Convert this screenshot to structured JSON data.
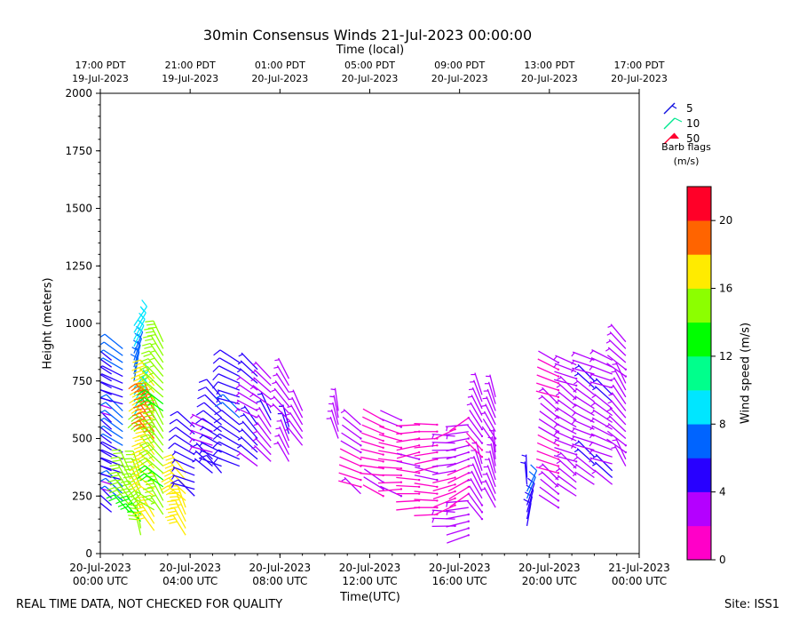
{
  "title": "30min Consensus Winds 21-Jul-2023 00:00:00",
  "top_axis_label": "Time (local)",
  "x_axis_label": "Time(UTC)",
  "y_axis_label": "Height (meters)",
  "footer_left": "REAL TIME DATA, NOT CHECKED FOR QUALITY",
  "footer_right": "Site: ISS1",
  "barb_legend": {
    "title_line1": "Barb flags",
    "title_line2": "(m/s)",
    "entries": [
      {
        "label": "5",
        "color": "#1010e0"
      },
      {
        "label": "10",
        "color": "#00e890"
      },
      {
        "label": "50",
        "color": "#ff0030"
      }
    ]
  },
  "colorbar": {
    "label": "Wind speed (m/s)",
    "colors": [
      "#ff00c8",
      "#b400ff",
      "#2800ff",
      "#0064ff",
      "#00e6ff",
      "#00ff8c",
      "#00ff00",
      "#8cff00",
      "#ffeb00",
      "#ff6400",
      "#ff0028"
    ],
    "ticks": [
      0,
      4,
      8,
      12,
      16,
      20
    ],
    "range": [
      0,
      22
    ]
  },
  "chart_data": {
    "type": "wind_barb_time_height",
    "title": "30min Consensus Winds 21-Jul-2023 00:00:00",
    "xlabel": "Time(UTC)",
    "ylabel": "Height (meters)",
    "x_hours_range": [
      0,
      24
    ],
    "ylim": [
      0,
      2000
    ],
    "y_ticks": [
      0,
      250,
      500,
      750,
      1000,
      1250,
      1500,
      1750,
      2000
    ],
    "x_ticks_utc": [
      {
        "h": 0,
        "line1": "20-Jul-2023",
        "line2": "00:00 UTC"
      },
      {
        "h": 4,
        "line1": "20-Jul-2023",
        "line2": "04:00 UTC"
      },
      {
        "h": 8,
        "line1": "20-Jul-2023",
        "line2": "08:00 UTC"
      },
      {
        "h": 12,
        "line1": "20-Jul-2023",
        "line2": "12:00 UTC"
      },
      {
        "h": 16,
        "line1": "20-Jul-2023",
        "line2": "16:00 UTC"
      },
      {
        "h": 20,
        "line1": "20-Jul-2023",
        "line2": "20:00 UTC"
      },
      {
        "h": 24,
        "line1": "21-Jul-2023",
        "line2": "00:00 UTC"
      }
    ],
    "x_ticks_local": [
      {
        "h": 0,
        "line1": "17:00 PDT",
        "line2": "19-Jul-2023"
      },
      {
        "h": 4,
        "line1": "21:00 PDT",
        "line2": "19-Jul-2023"
      },
      {
        "h": 8,
        "line1": "01:00 PDT",
        "line2": "20-Jul-2023"
      },
      {
        "h": 12,
        "line1": "05:00 PDT",
        "line2": "20-Jul-2023"
      },
      {
        "h": 16,
        "line1": "09:00 PDT",
        "line2": "20-Jul-2023"
      },
      {
        "h": 20,
        "line1": "13:00 PDT",
        "line2": "20-Jul-2023"
      },
      {
        "h": 24,
        "line1": "17:00 PDT",
        "line2": "20-Jul-2023"
      }
    ],
    "columns": [
      {
        "h": 0.0,
        "z0": 100,
        "z1": 950,
        "speed": 3.5,
        "dir": 305
      },
      {
        "h": 0.5,
        "z0": 180,
        "z1": 840,
        "speed": 4.5,
        "dir": 300
      },
      {
        "h": 1.0,
        "z0": 230,
        "z1": 900,
        "speed": 6.0,
        "dir": 300
      },
      {
        "h": 1.3,
        "z0": 180,
        "z1": 380,
        "speed": 14.5,
        "dir": 330
      },
      {
        "h": 1.5,
        "z0": 600,
        "z1": 1000,
        "speed": 8.0,
        "dir": 25
      },
      {
        "h": 1.8,
        "z0": 80,
        "z1": 370,
        "speed": 14.5,
        "dir": 335
      },
      {
        "h": 2.4,
        "z0": 100,
        "z1": 760,
        "speed": 16.5,
        "dir": 315
      },
      {
        "h": 2.4,
        "z0": 500,
        "z1": 700,
        "speed": 19.0,
        "dir": 320
      },
      {
        "h": 2.8,
        "z0": 170,
        "z1": 920,
        "speed": 14.5,
        "dir": 320
      },
      {
        "h": 3.8,
        "z0": 80,
        "z1": 360,
        "speed": 17.0,
        "dir": 325
      },
      {
        "h": 4.2,
        "z0": 250,
        "z1": 560,
        "speed": 5.0,
        "dir": 300
      },
      {
        "h": 5.0,
        "z0": 350,
        "z1": 580,
        "speed": 4.0,
        "dir": 300
      },
      {
        "h": 5.4,
        "z0": 350,
        "z1": 700,
        "speed": 5.0,
        "dir": 305
      },
      {
        "h": 6.2,
        "z0": 380,
        "z1": 850,
        "speed": 5.5,
        "dir": 300
      },
      {
        "h": 7.0,
        "z0": 380,
        "z1": 820,
        "speed": 4.0,
        "dir": 310
      },
      {
        "h": 7.6,
        "z0": 400,
        "z1": 760,
        "speed": 3.5,
        "dir": 320
      },
      {
        "h": 8.4,
        "z0": 400,
        "z1": 780,
        "speed": 3.5,
        "dir": 330
      },
      {
        "h": 9.0,
        "z0": 470,
        "z1": 640,
        "speed": 3.0,
        "dir": 330
      },
      {
        "h": 10.6,
        "z0": 500,
        "z1": 640,
        "speed": 3.0,
        "dir": 340
      },
      {
        "h": 11.6,
        "z0": 260,
        "z1": 580,
        "speed": 2.0,
        "dir": 300
      },
      {
        "h": 12.6,
        "z0": 250,
        "z1": 600,
        "speed": 1.5,
        "dir": 290
      },
      {
        "h": 13.4,
        "z0": 250,
        "z1": 580,
        "speed": 1.5,
        "dir": 280
      },
      {
        "h": 14.2,
        "z0": 200,
        "z1": 560,
        "speed": 1.5,
        "dir": 270
      },
      {
        "h": 15.0,
        "z0": 170,
        "z1": 560,
        "speed": 1.5,
        "dir": 270
      },
      {
        "h": 15.8,
        "z0": 120,
        "z1": 540,
        "speed": 2.0,
        "dir": 260
      },
      {
        "h": 16.4,
        "z0": 80,
        "z1": 600,
        "speed": 2.0,
        "dir": 250
      },
      {
        "h": 17.0,
        "z0": 150,
        "z1": 690,
        "speed": 2.5,
        "dir": 330
      },
      {
        "h": 17.6,
        "z0": 200,
        "z1": 690,
        "speed": 3.0,
        "dir": 340
      },
      {
        "h": 19.0,
        "z0": 120,
        "z1": 340,
        "speed": 5.5,
        "dir": 10
      },
      {
        "h": 20.4,
        "z0": 200,
        "z1": 840,
        "speed": 2.0,
        "dir": 300
      },
      {
        "h": 21.2,
        "z0": 250,
        "z1": 840,
        "speed": 3.0,
        "dir": 300
      },
      {
        "h": 22.0,
        "z0": 300,
        "z1": 850,
        "speed": 3.5,
        "dir": 300
      },
      {
        "h": 22.8,
        "z0": 300,
        "z1": 850,
        "speed": 3.5,
        "dir": 300
      },
      {
        "h": 23.4,
        "z0": 380,
        "z1": 930,
        "speed": 3.0,
        "dir": 320
      }
    ]
  }
}
